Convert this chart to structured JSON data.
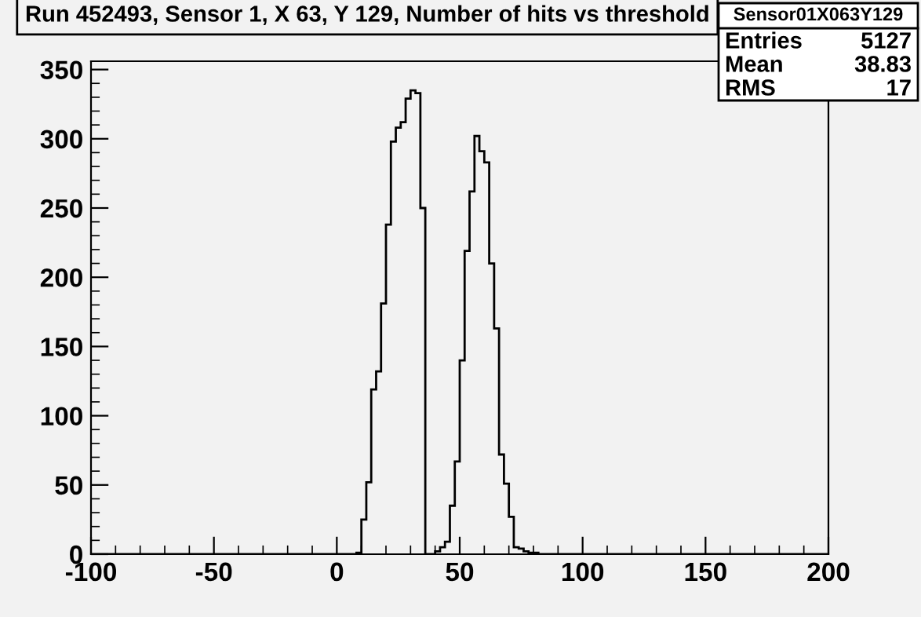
{
  "chart_data": {
    "type": "histogram",
    "title": "Run 452493, Sensor 1, X 63, Y 129, Number of hits vs threshold",
    "bins": [
      -100,
      -98,
      -96,
      -94,
      -92,
      -90,
      -88,
      -86,
      -84,
      -82,
      -80,
      -78,
      -76,
      -74,
      -72,
      -70,
      -68,
      -66,
      -64,
      -62,
      -60,
      -58,
      -56,
      -54,
      -52,
      -50,
      -48,
      -46,
      -44,
      -42,
      -40,
      -38,
      -36,
      -34,
      -32,
      -30,
      -28,
      -26,
      -24,
      -22,
      -20,
      -18,
      -16,
      -14,
      -12,
      -10,
      -8,
      -6,
      -4,
      -2,
      0,
      2,
      4,
      6,
      8,
      10,
      12,
      14,
      16,
      18,
      20,
      22,
      24,
      26,
      28,
      30,
      32,
      34,
      36,
      38,
      40,
      42,
      44,
      46,
      48,
      50,
      52,
      54,
      56,
      58,
      60,
      62,
      64,
      66,
      68,
      70,
      72,
      74,
      76,
      78,
      80,
      82,
      84,
      86,
      88,
      90,
      92,
      94,
      96,
      98,
      100,
      102,
      104,
      106,
      108,
      110,
      112,
      114,
      116,
      118,
      120,
      122,
      124,
      126,
      128,
      130,
      132,
      134,
      136,
      138,
      140,
      142,
      144,
      146,
      148,
      150,
      152,
      154,
      156,
      158,
      160,
      162,
      164,
      166,
      168,
      170,
      172,
      174,
      176,
      178,
      180,
      182,
      184,
      186,
      188,
      190,
      192,
      194,
      196,
      198,
      200
    ],
    "values": [
      0,
      0,
      0,
      0,
      0,
      0,
      0,
      0,
      0,
      0,
      0,
      0,
      0,
      0,
      0,
      0,
      0,
      0,
      0,
      0,
      0,
      0,
      0,
      0,
      0,
      0,
      0,
      0,
      0,
      0,
      0,
      0,
      0,
      0,
      0,
      0,
      0,
      0,
      0,
      0,
      0,
      0,
      0,
      0,
      0,
      0,
      0,
      0,
      0,
      0,
      0,
      0,
      0,
      0,
      1,
      25,
      52,
      119,
      132,
      181,
      238,
      298,
      308,
      312,
      329,
      335,
      333,
      250,
      0,
      0,
      2,
      5,
      9,
      35,
      67,
      140,
      219,
      262,
      302,
      291,
      283,
      210,
      163,
      72,
      51,
      27,
      5,
      4,
      2,
      1,
      1,
      0,
      0,
      0,
      0,
      0,
      0,
      0,
      0,
      0,
      0,
      0,
      0,
      0,
      0,
      0,
      0,
      0,
      0,
      0,
      0,
      0,
      0,
      0,
      0,
      0,
      0,
      0,
      0,
      0,
      0,
      0,
      0,
      0,
      0,
      0,
      0,
      0,
      0,
      0,
      0,
      0,
      0,
      0,
      0,
      0,
      0,
      0,
      0,
      0,
      0,
      0,
      0,
      0,
      0,
      0,
      0,
      0,
      0,
      0
    ],
    "color": "#000000",
    "xlim": [
      -100,
      200
    ],
    "xticks": [
      -100,
      -50,
      0,
      50,
      100,
      150,
      200
    ],
    "ylim": [
      0,
      356
    ],
    "yticks": [
      0,
      50,
      100,
      150,
      200,
      250,
      300,
      350
    ],
    "grid": false,
    "annotations": [
      "Sensor01X063Y129",
      "Entries",
      "5127",
      "Mean",
      "38.83",
      "RMS",
      "17"
    ]
  }
}
